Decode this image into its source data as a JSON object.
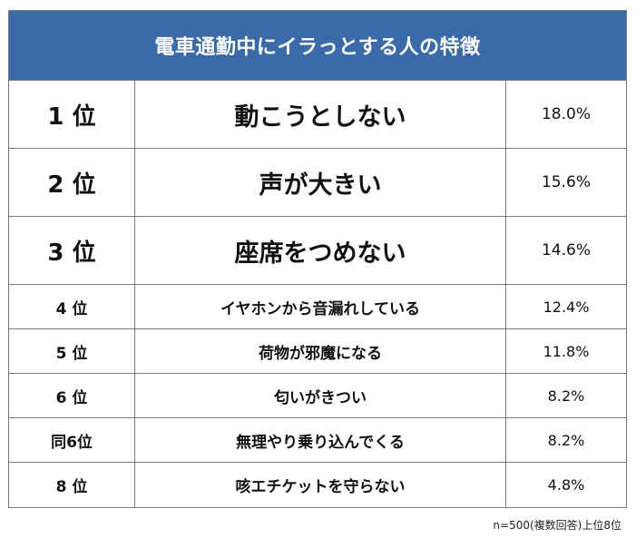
{
  "title": "電車通勤中にイラっとする人の特徴",
  "rows": [
    {
      "rank": "1 位",
      "trait": "動こうとしない",
      "percent": "18.0%"
    },
    {
      "rank": "2 位",
      "trait": "声が大きい",
      "percent": "15.6%"
    },
    {
      "rank": "3 位",
      "trait": "座席をつめない",
      "percent": "14.6%"
    },
    {
      "rank": "4 位",
      "trait": "イヤホンから音漏れしている",
      "percent": "12.4%"
    },
    {
      "rank": "5 位",
      "trait": "荷物が邪魔になる",
      "percent": "11.8%"
    },
    {
      "rank": "6 位",
      "trait": "匂いがきつい",
      "percent": "8.2%"
    },
    {
      "rank": "同6位",
      "trait": "無理やり乗り込んでくる",
      "percent": "8.2%"
    },
    {
      "rank": "8 位",
      "trait": "咳エチケットを守らない",
      "percent": "4.8%"
    }
  ],
  "footnote": "n=500(複数回答)上位8位"
}
